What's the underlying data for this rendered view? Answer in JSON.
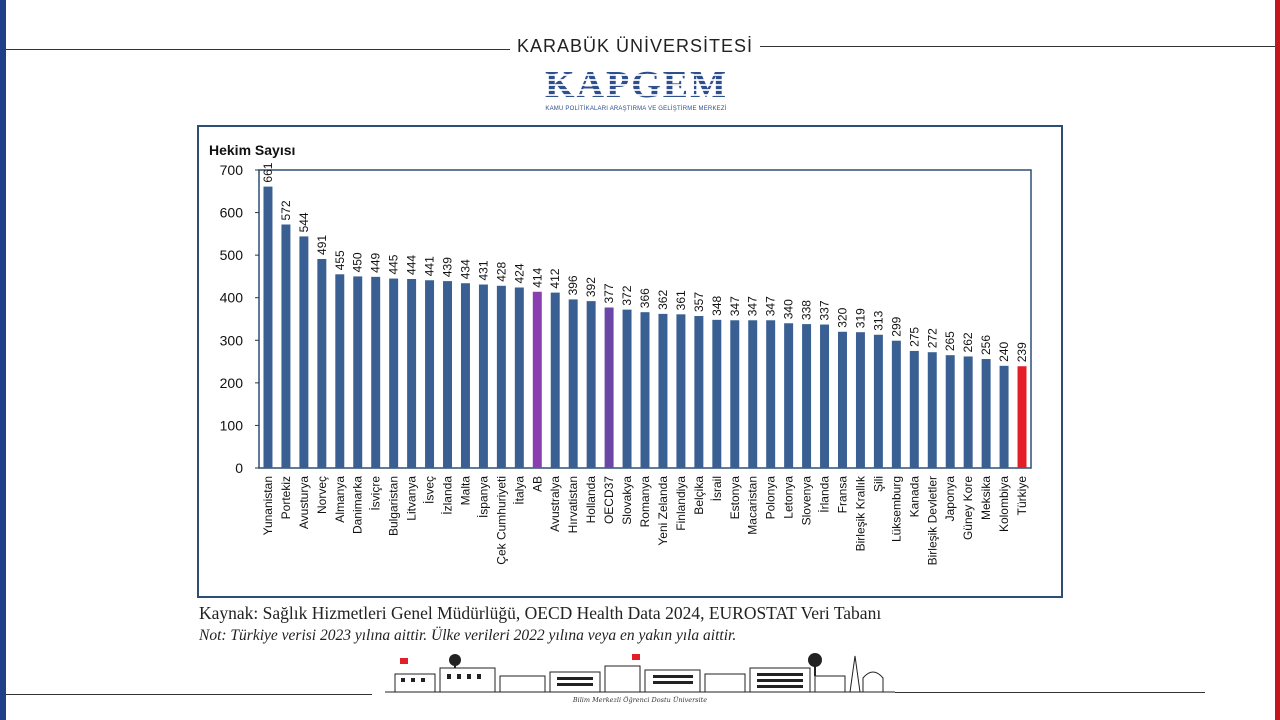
{
  "header": {
    "university": "KARABÜK ÜNİVERSİTESİ",
    "logo_text": "KAPGEM",
    "logo_subtitle": "KAMU POLİTİKALARI ARAŞTIRMA VE GELİŞTİRME MERKEZİ"
  },
  "colors": {
    "bar_default": "#3a5f92",
    "bar_eu": "#8a3fb0",
    "bar_oecd": "#6a46a6",
    "bar_turkiye": "#e41e26",
    "left_edge": "#1f3f86",
    "right_edge": "#c4161c"
  },
  "chart_data": {
    "type": "bar",
    "title": "Hekim Sayısı",
    "xlabel": "",
    "ylabel": "",
    "ylim": [
      0,
      700
    ],
    "yticks": [
      0,
      100,
      200,
      300,
      400,
      500,
      600,
      700
    ],
    "grid": false,
    "categories": [
      "Yunanistan",
      "Portekiz",
      "Avusturya",
      "Norveç",
      "Almanya",
      "Danimarka",
      "İsviçre",
      "Bulgaristan",
      "Litvanya",
      "İsveç",
      "İzlanda",
      "Malta",
      "İspanya",
      "Çek Cumhuriyeti",
      "İtalya",
      "AB",
      "Avustralya",
      "Hırvatistan",
      "Hollanda",
      "OECD37",
      "Slovakya",
      "Romanya",
      "Yeni Zelanda",
      "Finlandiya",
      "Belçika",
      "İsrail",
      "Estonya",
      "Macaristan",
      "Polonya",
      "Letonya",
      "Slovenya",
      "İrlanda",
      "Fransa",
      "Birleşik Krallık",
      "Şili",
      "Lüksemburg",
      "Kanada",
      "Birleşik Devletler",
      "Japonya",
      "Güney Kore",
      "Meksika",
      "Kolombiya",
      "Türkiye"
    ],
    "values": [
      661,
      572,
      544,
      491,
      455,
      450,
      449,
      445,
      444,
      441,
      439,
      434,
      431,
      428,
      424,
      414,
      412,
      396,
      392,
      377,
      372,
      366,
      362,
      361,
      357,
      348,
      347,
      347,
      347,
      340,
      338,
      337,
      320,
      319,
      313,
      299,
      275,
      272,
      265,
      262,
      256,
      240,
      239
    ],
    "highlights": {
      "AB": "bar_eu",
      "OECD37": "bar_oecd",
      "Türkiye": "bar_turkiye"
    }
  },
  "footer": {
    "source": "Kaynak: Sağlık Hizmetleri Genel Müdürlüğü, OECD Health Data 2024, EUROSTAT Veri Tabanı",
    "note": "Not: Türkiye verisi 2023 yılına aittir. Ülke verileri 2022 yılına veya en yakın yıla aittir.",
    "skyline_caption": "Bilim Merkezli Öğrenci Dostu Üniversite"
  }
}
